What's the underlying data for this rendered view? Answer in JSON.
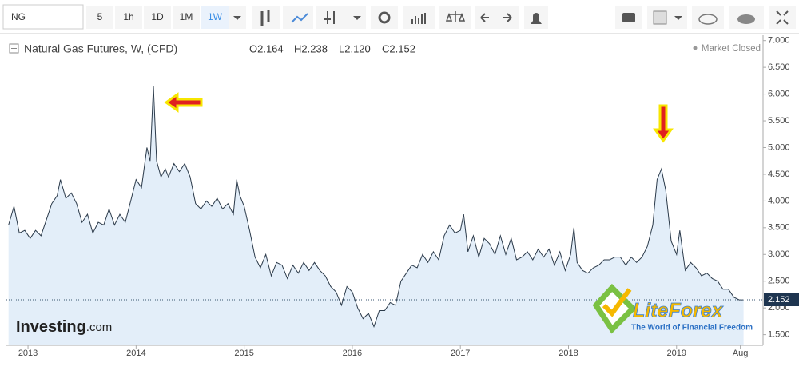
{
  "toolbar": {
    "symbol": "NG",
    "intervals": [
      "5",
      "1h",
      "1D",
      "1M",
      "1W"
    ],
    "active_interval": 4
  },
  "header": {
    "instrument": "Natural Gas Futures, W, (CFD)",
    "open": "O2.164",
    "high": "H2.238",
    "low": "L2.120",
    "close": "C2.152",
    "status": "Market Closed"
  },
  "watermarks": {
    "investing": "Investing",
    "investing_suffix": ".com",
    "brand": "LiteForex",
    "tagline": "The World of Financial Freedom"
  },
  "chart_data": {
    "type": "line",
    "color": "#2b3a4a",
    "fill": "#e3eef9",
    "x": [
      2012.82,
      2012.87,
      2012.92,
      2012.97,
      2013.02,
      2013.07,
      2013.12,
      2013.17,
      2013.22,
      2013.27,
      2013.3,
      2013.35,
      2013.4,
      2013.45,
      2013.5,
      2013.55,
      2013.6,
      2013.65,
      2013.7,
      2013.75,
      2013.8,
      2013.85,
      2013.9,
      2013.95,
      2014.0,
      2014.05,
      2014.1,
      2014.13,
      2014.16,
      2014.19,
      2014.23,
      2014.27,
      2014.3,
      2014.35,
      2014.4,
      2014.45,
      2014.5,
      2014.55,
      2014.6,
      2014.65,
      2014.7,
      2014.75,
      2014.8,
      2014.85,
      2014.9,
      2014.93,
      2014.96,
      2015.0,
      2015.05,
      2015.1,
      2015.15,
      2015.2,
      2015.25,
      2015.3,
      2015.35,
      2015.4,
      2015.45,
      2015.5,
      2015.55,
      2015.6,
      2015.65,
      2015.7,
      2015.75,
      2015.8,
      2015.85,
      2015.9,
      2015.95,
      2016.0,
      2016.05,
      2016.1,
      2016.15,
      2016.2,
      2016.25,
      2016.3,
      2016.35,
      2016.4,
      2016.45,
      2016.5,
      2016.55,
      2016.6,
      2016.65,
      2016.7,
      2016.75,
      2016.8,
      2016.85,
      2016.9,
      2016.95,
      2017.0,
      2017.03,
      2017.07,
      2017.12,
      2017.17,
      2017.22,
      2017.27,
      2017.32,
      2017.37,
      2017.42,
      2017.47,
      2017.52,
      2017.57,
      2017.62,
      2017.67,
      2017.72,
      2017.77,
      2017.82,
      2017.87,
      2017.92,
      2017.97,
      2018.02,
      2018.05,
      2018.08,
      2018.13,
      2018.18,
      2018.23,
      2018.28,
      2018.33,
      2018.38,
      2018.43,
      2018.48,
      2018.53,
      2018.58,
      2018.63,
      2018.68,
      2018.73,
      2018.78,
      2018.82,
      2018.86,
      2018.9,
      2018.95,
      2019.0,
      2019.03,
      2019.08,
      2019.13,
      2019.18,
      2019.23,
      2019.28,
      2019.33,
      2019.38,
      2019.43,
      2019.48,
      2019.53,
      2019.58,
      2019.62
    ],
    "values": [
      3.55,
      3.9,
      3.4,
      3.45,
      3.3,
      3.45,
      3.35,
      3.65,
      3.95,
      4.1,
      4.4,
      4.05,
      4.15,
      3.95,
      3.6,
      3.75,
      3.4,
      3.6,
      3.55,
      3.85,
      3.55,
      3.75,
      3.6,
      4.0,
      4.4,
      4.25,
      5.0,
      4.75,
      6.15,
      4.75,
      4.45,
      4.6,
      4.45,
      4.7,
      4.55,
      4.7,
      4.45,
      3.95,
      3.85,
      4.0,
      3.9,
      4.05,
      3.85,
      3.95,
      3.75,
      4.4,
      4.1,
      3.9,
      3.45,
      2.95,
      2.75,
      3.0,
      2.6,
      2.85,
      2.8,
      2.55,
      2.8,
      2.65,
      2.85,
      2.7,
      2.85,
      2.7,
      2.6,
      2.4,
      2.3,
      2.05,
      2.4,
      2.3,
      2.0,
      1.8,
      1.9,
      1.65,
      1.95,
      1.95,
      2.1,
      2.05,
      2.5,
      2.65,
      2.8,
      2.75,
      3.0,
      2.85,
      3.05,
      2.9,
      3.35,
      3.55,
      3.4,
      3.45,
      3.75,
      3.05,
      3.35,
      2.95,
      3.3,
      3.2,
      3.0,
      3.35,
      3.0,
      3.3,
      2.9,
      2.95,
      3.05,
      2.9,
      3.1,
      2.95,
      3.1,
      2.8,
      3.05,
      2.7,
      3.0,
      3.5,
      2.85,
      2.7,
      2.65,
      2.75,
      2.8,
      2.9,
      2.9,
      2.95,
      2.95,
      2.8,
      2.95,
      2.85,
      2.95,
      3.15,
      3.55,
      4.4,
      4.6,
      4.2,
      3.25,
      3.0,
      3.45,
      2.7,
      2.85,
      2.75,
      2.6,
      2.65,
      2.55,
      2.5,
      2.35,
      2.35,
      2.2,
      2.15,
      2.15
    ],
    "last_price": 2.152,
    "xlim": [
      2012.8,
      2019.8
    ],
    "xticks": [
      2013,
      2014,
      2015,
      2016,
      2017,
      2018,
      2019,
      {
        "value": 2019.59,
        "label": "Aug"
      }
    ],
    "ylim": [
      1.3,
      7.1
    ],
    "yticks": [
      {
        "value": 1.5,
        "label": "1.500"
      },
      {
        "value": 2,
        "label": "2.000"
      },
      {
        "value": 2.5,
        "label": "2.500"
      },
      {
        "value": 3,
        "label": "3.000"
      },
      {
        "value": 3.5,
        "label": "3.500"
      },
      {
        "value": 4,
        "label": "4.000"
      },
      {
        "value": 4.5,
        "label": "4.500"
      },
      {
        "value": 5,
        "label": "5.000"
      },
      {
        "value": 5.5,
        "label": "5.500"
      },
      {
        "value": 6,
        "label": "6.000"
      },
      {
        "value": 6.5,
        "label": "6.500"
      },
      {
        "value": 7,
        "label": "7.000"
      }
    ]
  }
}
